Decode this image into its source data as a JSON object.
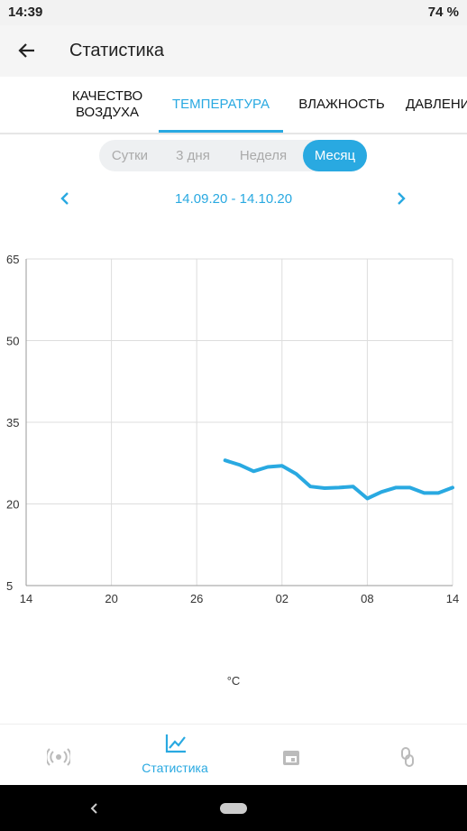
{
  "status_bar": {
    "time": "14:39",
    "battery": "74 %"
  },
  "app_bar": {
    "title": "Статистика"
  },
  "tabs": [
    {
      "label": "КАЧЕСТВО ВОЗДУХА"
    },
    {
      "label": "ТЕМПЕРАТУРА",
      "active": true
    },
    {
      "label": "ВЛАЖНОСТЬ"
    },
    {
      "label": "ДАВЛЕНИЕ"
    }
  ],
  "periods": [
    {
      "label": "Сутки"
    },
    {
      "label": "3 дня"
    },
    {
      "label": "Неделя"
    },
    {
      "label": "Месяц",
      "active": true
    }
  ],
  "date_range": "14.09.20 - 14.10.20",
  "chart_data": {
    "type": "line",
    "x": [
      14,
      15,
      16,
      17,
      18,
      19,
      20,
      21,
      22,
      23,
      24,
      25,
      26,
      27,
      28,
      29,
      30
    ],
    "series": [
      {
        "name": "°C",
        "color": "#29a9e1",
        "values": [
          28,
          27.2,
          26,
          26.8,
          27,
          25.5,
          23.2,
          22.9,
          23,
          23.2,
          21,
          22.2,
          23,
          23,
          22,
          22,
          23
        ]
      }
    ],
    "xlim": [
      0,
      30
    ],
    "xticks": [
      {
        "value": 0,
        "label": "14"
      },
      {
        "value": 6,
        "label": "20"
      },
      {
        "value": 12,
        "label": "26"
      },
      {
        "value": 18,
        "label": "02"
      },
      {
        "value": 24,
        "label": "08"
      },
      {
        "value": 30,
        "label": "14"
      }
    ],
    "ylim": [
      5,
      65
    ],
    "yticks": [
      5,
      20,
      35,
      50,
      65
    ],
    "grid": true
  },
  "bottom_nav": [
    {
      "label": "Статистика",
      "active": true
    }
  ]
}
